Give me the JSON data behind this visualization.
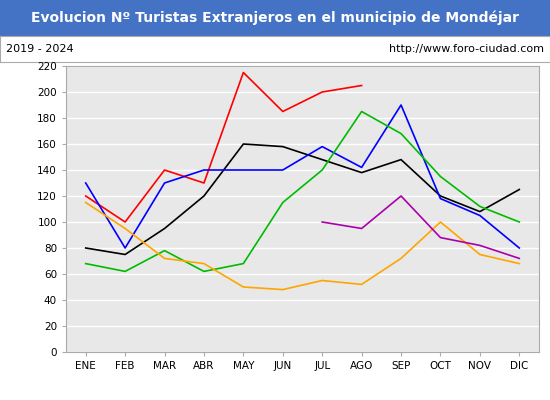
{
  "title": "Evolucion Nº Turistas Extranjeros en el municipio de Mondéjar",
  "subtitle_left": "2019 - 2024",
  "subtitle_right": "http://www.foro-ciudad.com",
  "title_bg_color": "#4472c4",
  "title_text_color": "#ffffff",
  "subtitle_bg_color": "#ffffff",
  "subtitle_text_color": "#000000",
  "plot_bg_color": "#e8e8e8",
  "months": [
    "ENE",
    "FEB",
    "MAR",
    "ABR",
    "MAY",
    "JUN",
    "JUL",
    "AGO",
    "SEP",
    "OCT",
    "NOV",
    "DIC"
  ],
  "ylim": [
    0,
    220
  ],
  "yticks": [
    0,
    20,
    40,
    60,
    80,
    100,
    120,
    140,
    160,
    180,
    200,
    220
  ],
  "series": {
    "2024": {
      "color": "#ff0000",
      "values": [
        120,
        100,
        140,
        130,
        215,
        185,
        200,
        205,
        null,
        null,
        null,
        null
      ]
    },
    "2023": {
      "color": "#000000",
      "values": [
        80,
        75,
        95,
        120,
        160,
        158,
        148,
        138,
        148,
        120,
        108,
        125
      ]
    },
    "2022": {
      "color": "#0000ff",
      "values": [
        130,
        80,
        130,
        140,
        140,
        140,
        158,
        142,
        190,
        118,
        105,
        80
      ]
    },
    "2021": {
      "color": "#00bb00",
      "values": [
        68,
        62,
        78,
        62,
        68,
        115,
        140,
        185,
        168,
        135,
        112,
        100
      ]
    },
    "2020": {
      "color": "#ffa500",
      "values": [
        115,
        95,
        72,
        68,
        50,
        48,
        55,
        52,
        72,
        100,
        75,
        68
      ]
    },
    "2019": {
      "color": "#aa00aa",
      "values": [
        null,
        null,
        null,
        null,
        null,
        null,
        100,
        95,
        120,
        88,
        82,
        72
      ]
    }
  }
}
